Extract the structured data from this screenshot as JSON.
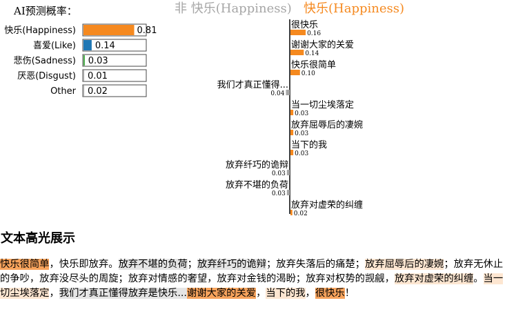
{
  "colors": {
    "positive": "#f5891f",
    "negative": "#a6a6a6",
    "like": "#1f77b4",
    "sadness": "#2ca02c",
    "axis": "#000000"
  },
  "prediction": {
    "title": "AI预测概率："
  },
  "chart_data": [
    {
      "type": "bar",
      "orientation": "horizontal",
      "categories": [
        "快乐(Happiness)",
        "喜爱(Like)",
        "悲伤(Sadness)",
        "厌恶(Disgust)",
        "Other"
      ],
      "values": [
        0.81,
        0.14,
        0.03,
        0.01,
        0.02
      ],
      "value_labels": [
        "0.81",
        "0.14",
        "0.03",
        "0.01",
        "0.02"
      ],
      "xlim": [
        0,
        1
      ]
    },
    {
      "type": "bar",
      "orientation": "horizontal",
      "subtitle_negative": "非 快乐(Happiness)",
      "subtitle_positive": "快乐(Happiness)",
      "categories": [
        "很快乐",
        "谢谢大家的关爱",
        "快乐很简单",
        "我们才真正懂得...",
        "当一切尘埃落定",
        "放弃屈辱后的凄婉",
        "当下的我",
        "放弃纤巧的诡辩",
        "放弃不堪的负荷",
        "放弃对虚荣的纠缠"
      ],
      "values": [
        0.16,
        0.14,
        0.1,
        -0.04,
        0.03,
        0.03,
        0.03,
        -0.03,
        -0.03,
        0.02
      ],
      "value_labels": [
        "0.16",
        "0.14",
        "0.10",
        "0.04",
        "0.03",
        "0.03",
        "0.03",
        "0.03",
        "0.03",
        "0.02"
      ]
    }
  ],
  "highlight": {
    "title": "文本高光展示",
    "segments": [
      {
        "text": "快乐很简单",
        "tone": "pos-strong"
      },
      {
        "text": "，快乐即放弃。",
        "tone": ""
      },
      {
        "text": "放弃不堪的负荷",
        "tone": "neg-light"
      },
      {
        "text": "；",
        "tone": ""
      },
      {
        "text": "放弃纤巧的诡辩",
        "tone": "neg-light"
      },
      {
        "text": "；放弃失落后的痛楚；",
        "tone": ""
      },
      {
        "text": "放弃屈辱后的凄婉",
        "tone": "pos-light"
      },
      {
        "text": "；放弃无休止的争吵，放弃没尽头的周旋；放弃对情感的奢望，放弃对金钱的渴盼；放弃对权势的觊觎，",
        "tone": ""
      },
      {
        "text": "放弃对虚荣的纠缠",
        "tone": "pos-light"
      },
      {
        "text": "。",
        "tone": ""
      },
      {
        "text": "当一切尘埃落定",
        "tone": "pos-light"
      },
      {
        "text": "，",
        "tone": ""
      },
      {
        "text": "我们才真正懂得放弃是快乐...",
        "tone": "neg-light"
      },
      {
        "text": "谢谢大家的关爱",
        "tone": "pos-strong"
      },
      {
        "text": "，",
        "tone": ""
      },
      {
        "text": "当下的我",
        "tone": "pos-light"
      },
      {
        "text": "，",
        "tone": ""
      },
      {
        "text": "很快乐",
        "tone": "pos-strong"
      },
      {
        "text": "！",
        "tone": ""
      }
    ]
  }
}
